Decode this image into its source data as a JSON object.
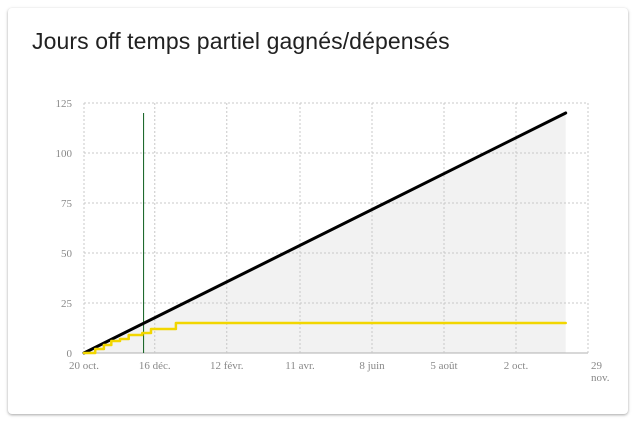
{
  "card": {
    "title": "Jours off temps partiel gagnés/dépensés"
  },
  "chart_data": {
    "type": "line",
    "title": "Jours off temps partiel gagnés/dépensés",
    "xlabel": "",
    "ylabel": "",
    "ylim": [
      0,
      125
    ],
    "grid": true,
    "legend": "none",
    "x_range": [
      "2023-10-20",
      "2024-11-29"
    ],
    "x_ticks": [
      {
        "date": "2023-10-20",
        "label": "20 oct."
      },
      {
        "date": "2023-12-16",
        "label": "16 déc."
      },
      {
        "date": "2024-02-12",
        "label": "12 févr."
      },
      {
        "date": "2024-04-11",
        "label": "11 avr."
      },
      {
        "date": "2024-06-08",
        "label": "8 juin"
      },
      {
        "date": "2024-08-05",
        "label": "5 août"
      },
      {
        "date": "2024-10-02",
        "label": "2 oct."
      },
      {
        "date": "2024-11-29",
        "label": "29 nov."
      }
    ],
    "y_ticks": [
      0,
      25,
      50,
      75,
      100,
      125
    ],
    "marker_date": "2023-12-07",
    "series": [
      {
        "color": "#000000",
        "fill": "#f2f2f2",
        "points": [
          [
            "2023-10-20",
            0
          ],
          [
            "2024-11-11",
            120
          ]
        ]
      },
      {
        "color": "#f2d600",
        "points": [
          [
            "2023-10-20",
            0
          ],
          [
            "2023-10-29",
            0
          ],
          [
            "2023-10-29",
            2
          ],
          [
            "2023-11-05",
            2
          ],
          [
            "2023-11-05",
            4
          ],
          [
            "2023-11-11",
            4
          ],
          [
            "2023-11-11",
            6
          ],
          [
            "2023-11-18",
            6
          ],
          [
            "2023-11-18",
            7
          ],
          [
            "2023-11-25",
            7
          ],
          [
            "2023-11-25",
            9
          ],
          [
            "2023-12-06",
            9
          ],
          [
            "2023-12-06",
            10
          ],
          [
            "2023-12-13",
            10
          ],
          [
            "2023-12-13",
            12
          ],
          [
            "2024-01-02",
            12
          ],
          [
            "2024-01-02",
            15
          ],
          [
            "2024-11-11",
            15
          ]
        ]
      }
    ],
    "marker_color": "#0a5c1a"
  }
}
